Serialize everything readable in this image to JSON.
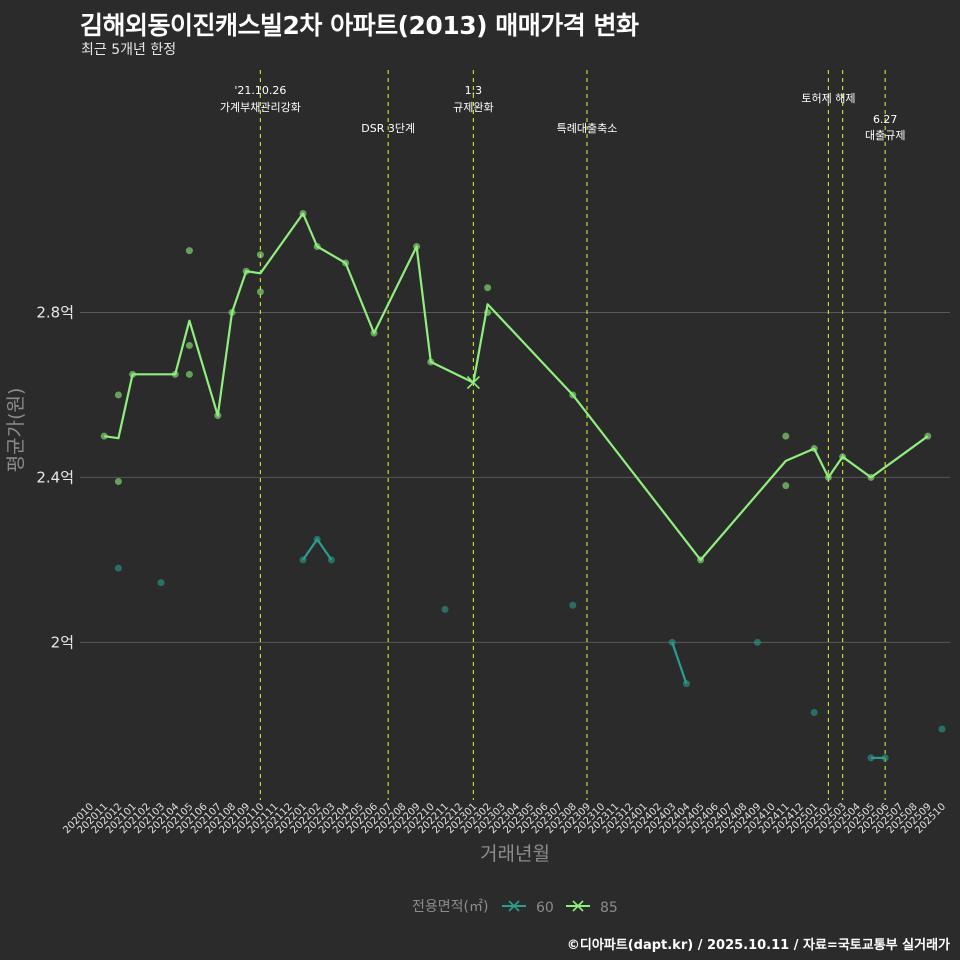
{
  "header": {
    "title": "김해외동이진캐스빌2차 아파트(2013) 매매가격 변화",
    "subtitle": "최근 5개년 한정"
  },
  "footer": {
    "caption": "©디아파트(dapt.kr) / 2025.10.11 / 자료=국토교통부 실거래가"
  },
  "colors": {
    "background": "#2b2b2b",
    "grid": "#595959",
    "series_60": "#2a9d8f",
    "series_85": "#90ee7e",
    "event_line": "#c6d62b"
  },
  "chart_data": {
    "type": "line",
    "title": "김해외동이진캐스빌2차 아파트(2013) 매매가격 변화",
    "subtitle": "최근 5개년 한정",
    "xlabel": "거래년월",
    "ylabel": "평균가(원)",
    "ylim": [
      1.63,
      3.4
    ],
    "yticks": [
      {
        "value": 2.0,
        "label": "2억"
      },
      {
        "value": 2.4,
        "label": "2.4억"
      },
      {
        "value": 2.8,
        "label": "2.8억"
      }
    ],
    "grid": true,
    "categories": [
      "202010",
      "202011",
      "202012",
      "202101",
      "202102",
      "202103",
      "202104",
      "202105",
      "202106",
      "202107",
      "202108",
      "202109",
      "202110",
      "202111",
      "202112",
      "202201",
      "202202",
      "202203",
      "202204",
      "202205",
      "202206",
      "202207",
      "202208",
      "202209",
      "202210",
      "202211",
      "202212",
      "202301",
      "202302",
      "202303",
      "202304",
      "202305",
      "202306",
      "202307",
      "202308",
      "202309",
      "202310",
      "202311",
      "202312",
      "202401",
      "202402",
      "202403",
      "202404",
      "202405",
      "202406",
      "202407",
      "202408",
      "202409",
      "202410",
      "202411",
      "202412",
      "202501",
      "202502",
      "202503",
      "202504",
      "202505",
      "202506",
      "202507",
      "202508",
      "202509",
      "202510"
    ],
    "legend": {
      "title": "전용면적(㎡)",
      "position": "bottom",
      "items": [
        {
          "name": "60",
          "color": "#2a9d8f"
        },
        {
          "name": "85",
          "color": "#90ee7e"
        }
      ]
    },
    "series": [
      {
        "name": "85",
        "color": "#90ee7e",
        "line": [
          {
            "x": "202011",
            "y": 2.5
          },
          {
            "x": "202012",
            "y": 2.495
          },
          {
            "x": "202101",
            "y": 2.65
          },
          {
            "x": "202104",
            "y": 2.65
          },
          {
            "x": "202105",
            "y": 2.78
          },
          {
            "x": "202107",
            "y": 2.55
          },
          {
            "x": "202108",
            "y": 2.8
          },
          {
            "x": "202109",
            "y": 2.9
          },
          {
            "x": "202110",
            "y": 2.895
          },
          {
            "x": "202201",
            "y": 3.04
          },
          {
            "x": "202202",
            "y": 2.96
          },
          {
            "x": "202204",
            "y": 2.92
          },
          {
            "x": "202206",
            "y": 2.75
          },
          {
            "x": "202209",
            "y": 2.96
          },
          {
            "x": "202210",
            "y": 2.68
          },
          {
            "x": "202301",
            "y": 2.63
          },
          {
            "x": "202302",
            "y": 2.82
          },
          {
            "x": "202308",
            "y": 2.6
          },
          {
            "x": "202405",
            "y": 2.2
          },
          {
            "x": "202411",
            "y": 2.44
          },
          {
            "x": "202501",
            "y": 2.47
          },
          {
            "x": "202502",
            "y": 2.4
          },
          {
            "x": "202503",
            "y": 2.45
          },
          {
            "x": "202505",
            "y": 2.4
          },
          {
            "x": "202509",
            "y": 2.5
          }
        ],
        "points": [
          {
            "x": "202011",
            "y": 2.5
          },
          {
            "x": "202012",
            "y": 2.6
          },
          {
            "x": "202012",
            "y": 2.39
          },
          {
            "x": "202101",
            "y": 2.65
          },
          {
            "x": "202104",
            "y": 2.65
          },
          {
            "x": "202105",
            "y": 2.95
          },
          {
            "x": "202105",
            "y": 2.72
          },
          {
            "x": "202105",
            "y": 2.65
          },
          {
            "x": "202107",
            "y": 2.55
          },
          {
            "x": "202108",
            "y": 2.8
          },
          {
            "x": "202109",
            "y": 2.9
          },
          {
            "x": "202110",
            "y": 2.94
          },
          {
            "x": "202110",
            "y": 2.85
          },
          {
            "x": "202201",
            "y": 3.04
          },
          {
            "x": "202202",
            "y": 2.96
          },
          {
            "x": "202204",
            "y": 2.92
          },
          {
            "x": "202206",
            "y": 2.75
          },
          {
            "x": "202209",
            "y": 2.96
          },
          {
            "x": "202210",
            "y": 2.68
          },
          {
            "x": "202302",
            "y": 2.86
          },
          {
            "x": "202302",
            "y": 2.8
          },
          {
            "x": "202308",
            "y": 2.6
          },
          {
            "x": "202405",
            "y": 2.2
          },
          {
            "x": "202411",
            "y": 2.5
          },
          {
            "x": "202411",
            "y": 2.38
          },
          {
            "x": "202501",
            "y": 2.47
          },
          {
            "x": "202502",
            "y": 2.4
          },
          {
            "x": "202503",
            "y": 2.45
          },
          {
            "x": "202505",
            "y": 2.4
          },
          {
            "x": "202509",
            "y": 2.5
          }
        ],
        "cross_marker": {
          "x": "202301",
          "y": 2.63
        }
      },
      {
        "name": "60",
        "color": "#2a9d8f",
        "segments": [
          [
            {
              "x": "202201",
              "y": 2.2
            },
            {
              "x": "202202",
              "y": 2.25
            },
            {
              "x": "202203",
              "y": 2.2
            }
          ],
          [
            {
              "x": "202403",
              "y": 2.0
            },
            {
              "x": "202404",
              "y": 1.9
            }
          ],
          [
            {
              "x": "202505",
              "y": 1.72
            },
            {
              "x": "202506",
              "y": 1.72
            }
          ]
        ],
        "points": [
          {
            "x": "202012",
            "y": 2.18
          },
          {
            "x": "202103",
            "y": 2.145
          },
          {
            "x": "202201",
            "y": 2.2
          },
          {
            "x": "202202",
            "y": 2.25
          },
          {
            "x": "202203",
            "y": 2.2
          },
          {
            "x": "202211",
            "y": 2.08
          },
          {
            "x": "202308",
            "y": 2.09
          },
          {
            "x": "202403",
            "y": 2.0
          },
          {
            "x": "202404",
            "y": 1.9
          },
          {
            "x": "202409",
            "y": 2.0
          },
          {
            "x": "202501",
            "y": 1.83
          },
          {
            "x": "202505",
            "y": 1.72
          },
          {
            "x": "202506",
            "y": 1.72
          },
          {
            "x": "202510",
            "y": 1.79
          }
        ]
      }
    ],
    "events": [
      {
        "x": "202110",
        "offset": 0.0,
        "lines": [
          "'21.10.26",
          "가계부채관리강화"
        ],
        "level": "top"
      },
      {
        "x": "202207",
        "offset": 0.0,
        "lines": [
          "DSR 3단계"
        ],
        "level": "low"
      },
      {
        "x": "202301",
        "offset": 0.0,
        "lines": [
          "1.3",
          "규제완화"
        ],
        "level": "top"
      },
      {
        "x": "202309",
        "offset": 0.0,
        "lines": [
          "특례대출축소"
        ],
        "level": "low"
      },
      {
        "x": "202502",
        "offset": 0.0,
        "lines": [],
        "level": "top"
      },
      {
        "x": "202503",
        "offset": 0.0,
        "lines": [],
        "level": "top"
      },
      {
        "x": "202506",
        "offset": 0.0,
        "lines": [
          "6.27",
          "대출규제"
        ],
        "level": "low"
      }
    ],
    "event_labels_extra": [
      {
        "x": "202502",
        "lines": [
          "토허제 해제"
        ]
      }
    ]
  }
}
